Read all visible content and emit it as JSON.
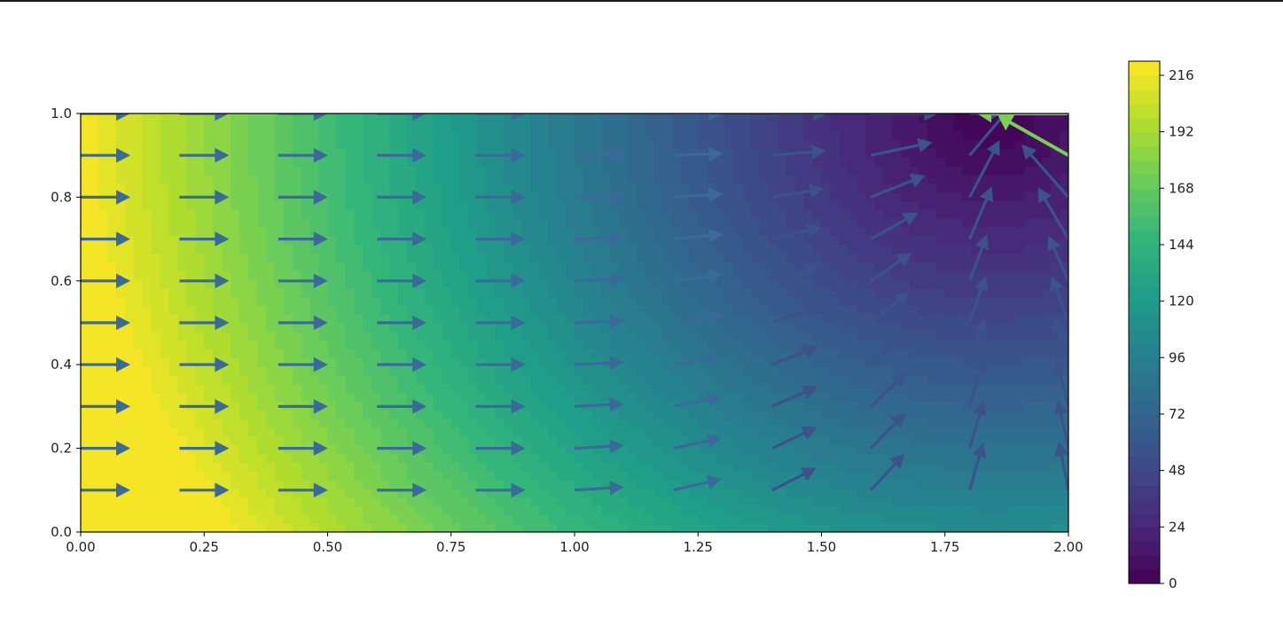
{
  "chart_data": {
    "type": "contourf+quiver",
    "title": "",
    "xlabel": "",
    "ylabel": "",
    "xlim": [
      0.0,
      2.0
    ],
    "ylim": [
      0.0,
      1.0
    ],
    "x_ticks": [
      "0.00",
      "0.25",
      "0.50",
      "0.75",
      "1.00",
      "1.25",
      "1.50",
      "1.75",
      "2.00"
    ],
    "y_ticks": [
      "0.0",
      "0.2",
      "0.4",
      "0.6",
      "0.8",
      "1.0"
    ],
    "colormap": "viridis",
    "field": {
      "description": "scalar field, approx 220 at x=0 decreasing to the right, minimum ~0 near the top-right corner (x~1.85, y=1.0)",
      "left_value": 220,
      "sink": {
        "x": 1.85,
        "y": 1.0
      },
      "sink_value": 0
    },
    "vectors": {
      "grid_x": [
        0.0,
        0.2,
        0.4,
        0.6,
        0.8,
        1.0,
        1.2,
        1.4,
        1.6,
        1.8,
        2.0
      ],
      "grid_y": [
        0.1,
        0.2,
        0.3,
        0.4,
        0.5,
        0.6,
        0.7,
        0.8,
        0.9,
        1.0
      ],
      "direction": "flow toward the top-right sink, strongest near it"
    },
    "colorbar": {
      "ticks": [
        "0",
        "24",
        "48",
        "72",
        "96",
        "120",
        "144",
        "168",
        "192",
        "216"
      ],
      "min": 0,
      "max": 222
    }
  },
  "colors": {
    "viridis": [
      "#440154",
      "#482878",
      "#3e4989",
      "#31688e",
      "#26828e",
      "#1f9e89",
      "#35b779",
      "#6ece58",
      "#b5de2b",
      "#fde725"
    ]
  }
}
